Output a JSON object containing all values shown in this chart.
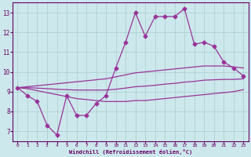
{
  "xlabel": "Windchill (Refroidissement éolien,°C)",
  "x_data": [
    0,
    1,
    2,
    3,
    4,
    5,
    6,
    7,
    8,
    9,
    10,
    11,
    12,
    13,
    14,
    15,
    16,
    17,
    18,
    19,
    20,
    21,
    22,
    23
  ],
  "y_main": [
    9.2,
    8.8,
    8.5,
    7.3,
    6.8,
    8.8,
    7.8,
    7.8,
    8.4,
    8.8,
    10.2,
    11.5,
    13.0,
    11.8,
    12.8,
    12.8,
    12.8,
    13.2,
    11.4,
    11.5,
    11.3,
    10.5,
    10.2,
    9.8
  ],
  "y_upper": [
    9.2,
    9.25,
    9.3,
    9.35,
    9.4,
    9.45,
    9.5,
    9.55,
    9.6,
    9.65,
    9.75,
    9.85,
    9.95,
    10.0,
    10.05,
    10.1,
    10.15,
    10.2,
    10.25,
    10.3,
    10.3,
    10.3,
    10.25,
    10.2
  ],
  "y_lower": [
    9.2,
    9.15,
    9.05,
    8.95,
    8.85,
    8.75,
    8.65,
    8.6,
    8.55,
    8.5,
    8.5,
    8.5,
    8.55,
    8.55,
    8.6,
    8.65,
    8.7,
    8.75,
    8.8,
    8.85,
    8.9,
    8.95,
    9.0,
    9.1
  ],
  "y_mid": [
    9.2,
    9.2,
    9.18,
    9.15,
    9.12,
    9.1,
    9.08,
    9.08,
    9.08,
    9.08,
    9.12,
    9.18,
    9.25,
    9.28,
    9.32,
    9.38,
    9.42,
    9.48,
    9.52,
    9.58,
    9.6,
    9.62,
    9.62,
    9.65
  ],
  "ylim": [
    6.5,
    13.5
  ],
  "xlim": [
    -0.5,
    23.5
  ],
  "line_color": "#993399",
  "bg_color": "#cce8ec",
  "grid_color": "#aacccc",
  "axis_color": "#660066",
  "text_color": "#660066",
  "marker": "D",
  "markersize": 2.5,
  "linewidth": 0.9,
  "yticks": [
    7,
    8,
    9,
    10,
    11,
    12,
    13
  ],
  "xticks": [
    0,
    1,
    2,
    3,
    4,
    5,
    6,
    7,
    8,
    9,
    10,
    11,
    12,
    13,
    14,
    15,
    16,
    17,
    18,
    19,
    20,
    21,
    22,
    23
  ]
}
